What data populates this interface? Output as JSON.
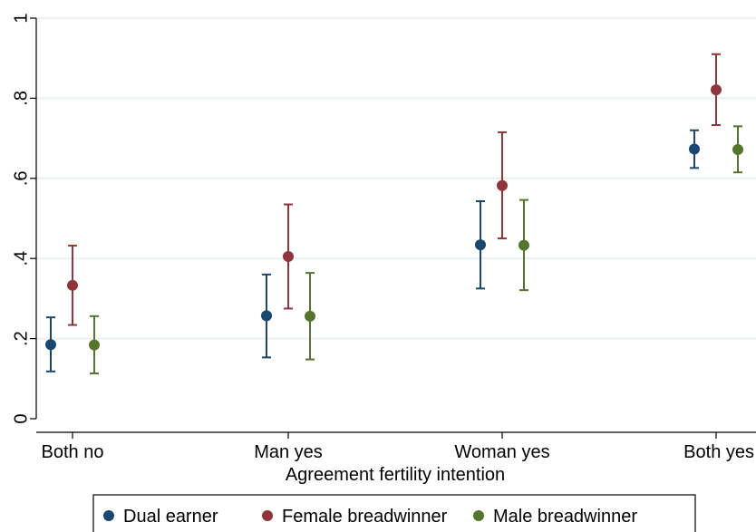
{
  "chart_data": {
    "type": "scatter",
    "subtype": "point-with-error-bars",
    "xlabel": "Agreement fertility intention",
    "ylabel": "",
    "categories": [
      "Both no",
      "Man yes",
      "Woman yes",
      "Both yes"
    ],
    "ylim": [
      0,
      1
    ],
    "yticks": [
      0,
      0.2,
      0.4,
      0.6,
      0.8,
      1
    ],
    "ytick_labels": [
      "0",
      ".2",
      ".4",
      ".6",
      ".8",
      "1"
    ],
    "grid": "horizontal",
    "legend_position": "bottom",
    "series": [
      {
        "name": "Dual earner",
        "color": "#1a476f",
        "values": [
          0.185,
          0.257,
          0.434,
          0.673
        ],
        "lower": [
          0.118,
          0.153,
          0.325,
          0.626
        ],
        "upper": [
          0.253,
          0.36,
          0.543,
          0.72
        ]
      },
      {
        "name": "Female breadwinner",
        "color": "#90353b",
        "values": [
          0.333,
          0.405,
          0.582,
          0.821
        ],
        "lower": [
          0.234,
          0.275,
          0.45,
          0.733
        ],
        "upper": [
          0.432,
          0.535,
          0.715,
          0.91
        ]
      },
      {
        "name": "Male breadwinner",
        "color": "#55752f",
        "values": [
          0.184,
          0.256,
          0.433,
          0.672
        ],
        "lower": [
          0.113,
          0.148,
          0.321,
          0.615
        ],
        "upper": [
          0.256,
          0.364,
          0.546,
          0.73
        ]
      }
    ]
  }
}
